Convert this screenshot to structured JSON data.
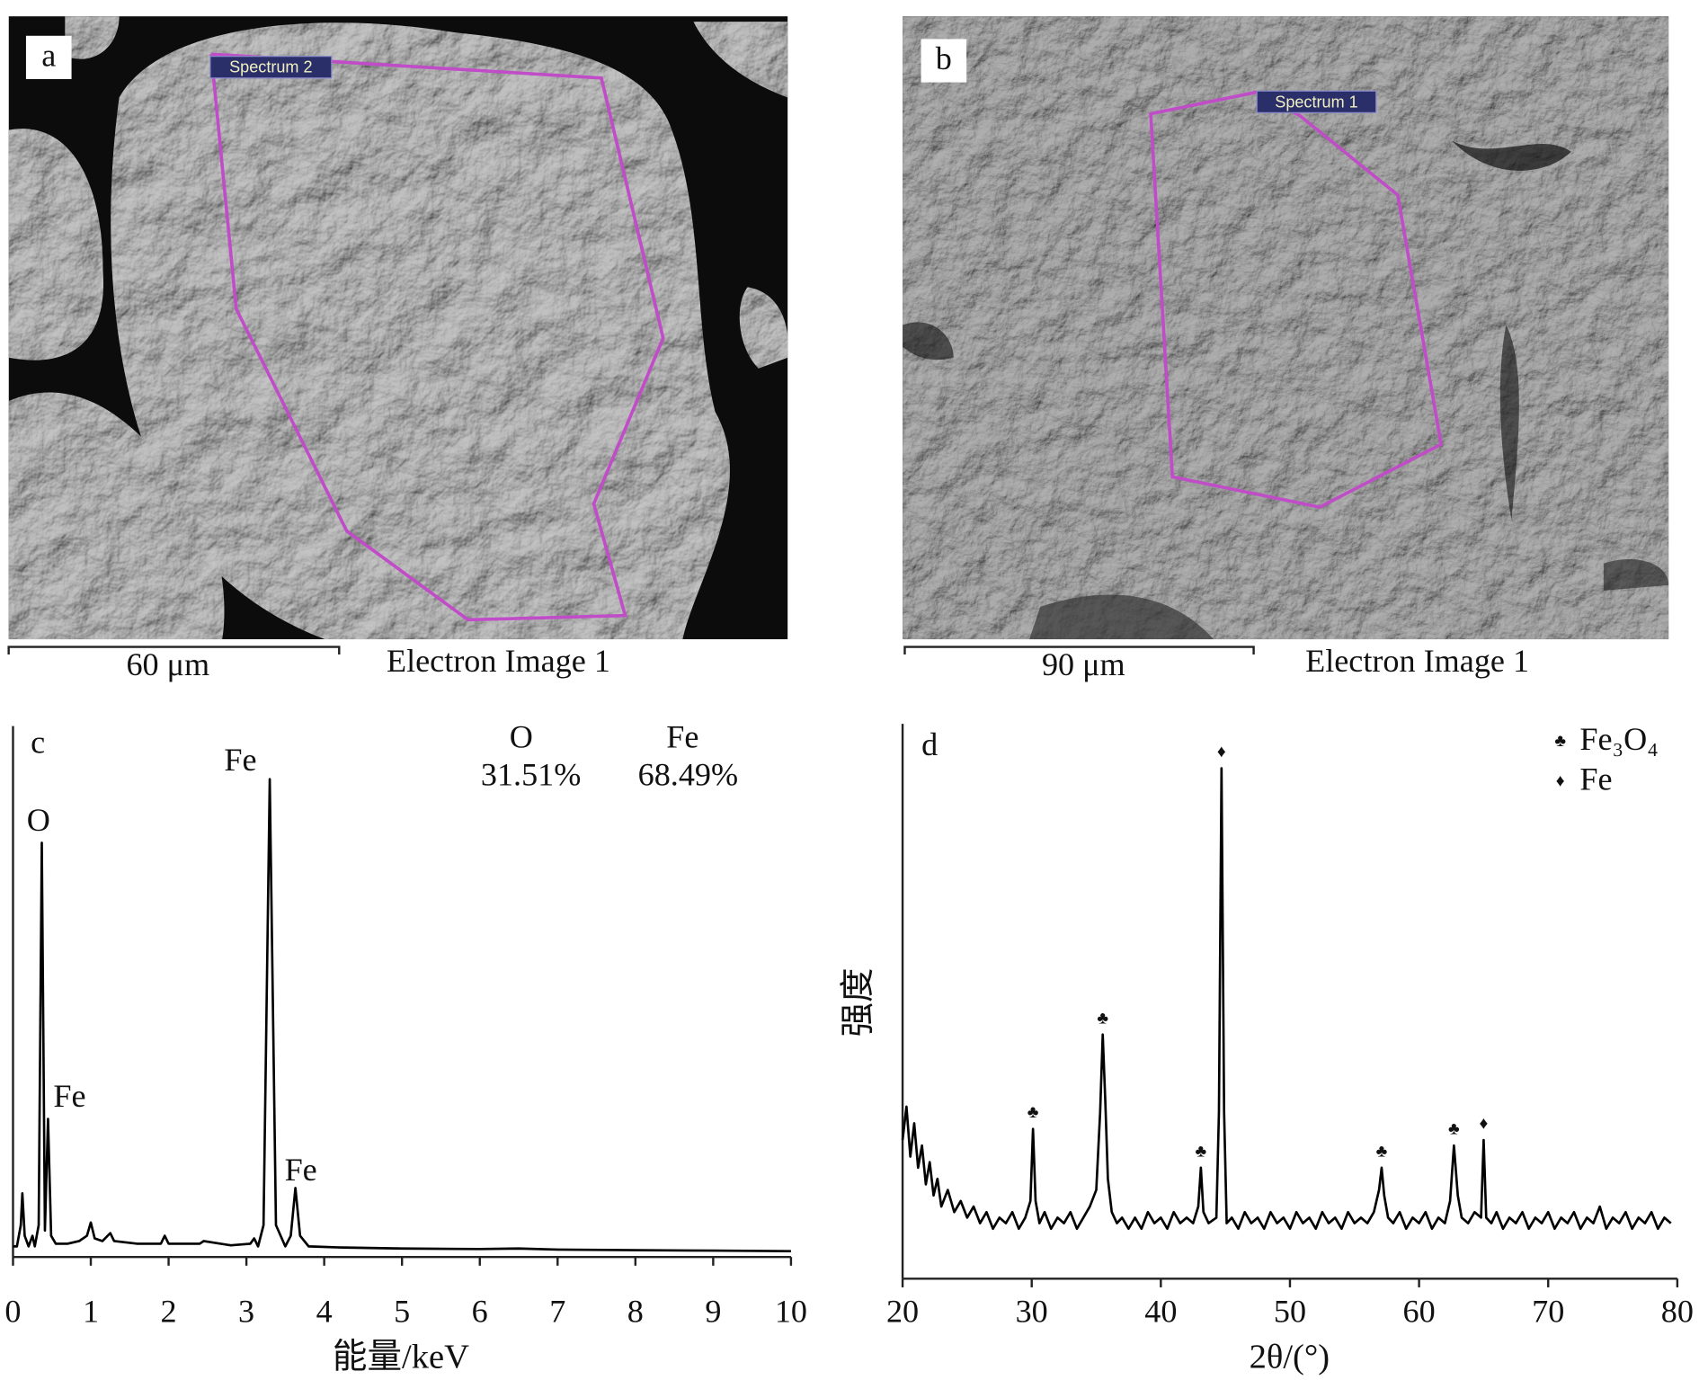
{
  "images": [
    {
      "letter": "a",
      "spectrum": "Spectrum 2",
      "scale_bar": "60 μm",
      "caption": "Electron Image 1"
    },
    {
      "letter": "b",
      "spectrum": "Spectrum 1",
      "scale_bar": "90 μm",
      "caption": "Electron Image 1"
    }
  ],
  "chart_data": [
    {
      "type": "line",
      "panel": "c",
      "x_label": "能量/keV",
      "x": [
        0,
        0.05,
        0.1,
        0.12,
        0.15,
        0.2,
        0.25,
        0.28,
        0.33,
        0.37,
        0.41,
        0.45,
        0.49,
        0.55,
        0.7,
        0.85,
        0.95,
        1,
        1.05,
        1.15,
        1.25,
        1.3,
        1.6,
        1.9,
        1.95,
        2,
        2.4,
        2.45,
        2.8,
        3.05,
        3.1,
        3.15,
        3.22,
        3.3,
        3.38,
        3.5,
        3.57,
        3.63,
        3.69,
        3.8,
        4.2,
        5,
        6,
        6.5,
        7,
        8,
        9,
        10
      ],
      "series": [
        {
          "color": "#000000",
          "values": [
            2,
            2,
            6,
            12,
            4,
            2,
            4,
            2,
            6,
            78,
            5,
            26,
            4,
            2.5,
            2.5,
            3,
            4,
            6.5,
            3.5,
            3,
            4.5,
            3,
            2.5,
            2.5,
            4,
            2.5,
            2.5,
            3,
            2.2,
            2.5,
            3.5,
            2,
            6,
            90,
            6,
            2,
            4,
            13,
            4,
            2,
            1.8,
            1.6,
            1.5,
            1.6,
            1.4,
            1.3,
            1.2,
            1.1
          ]
        }
      ],
      "xlim": [
        0,
        10
      ],
      "xticks": [
        0,
        1,
        2,
        3,
        4,
        5,
        6,
        7,
        8,
        9,
        10
      ],
      "ylim": [
        0,
        100
      ],
      "annotations": [
        {
          "text": "O",
          "x": 0.37
        },
        {
          "text": "Fe",
          "x": 3.3
        },
        {
          "text": "Fe",
          "x": 0.45
        },
        {
          "text": "Fe",
          "x": 3.63
        }
      ],
      "composition": [
        {
          "element": "O",
          "value": 31.51,
          "label": "31.51%"
        },
        {
          "element": "Fe",
          "value": 68.49,
          "label": "68.49%"
        }
      ]
    },
    {
      "type": "line",
      "panel": "d",
      "x_label": "2θ/(°)",
      "y_label": "强度",
      "x": [
        20,
        20.3,
        20.6,
        20.9,
        21.2,
        21.5,
        21.8,
        22.1,
        22.4,
        22.7,
        23,
        23.5,
        24,
        24.5,
        25,
        25.5,
        26,
        26.5,
        27,
        27.5,
        28,
        28.5,
        29,
        29.5,
        29.9,
        30.1,
        30.3,
        30.6,
        31,
        31.5,
        32,
        32.5,
        33,
        33.5,
        34,
        34.5,
        35,
        35.3,
        35.5,
        35.7,
        35.9,
        36.2,
        36.6,
        37,
        37.5,
        38,
        38.5,
        39,
        39.5,
        40,
        40.5,
        41,
        41.5,
        42,
        42.5,
        42.9,
        43.1,
        43.3,
        43.7,
        44.3,
        44.5,
        44.7,
        44.9,
        45.1,
        45.5,
        46,
        46.5,
        47,
        47.5,
        48,
        48.5,
        49,
        49.5,
        50,
        50.5,
        51,
        51.5,
        52,
        52.5,
        53,
        53.5,
        54,
        54.5,
        55,
        55.5,
        56,
        56.5,
        56.9,
        57.1,
        57.3,
        57.6,
        58,
        58.5,
        59,
        59.5,
        60,
        60.5,
        61,
        61.5,
        62,
        62.4,
        62.7,
        63,
        63.3,
        63.8,
        64.3,
        64.8,
        65,
        65.2,
        65.6,
        66,
        66.5,
        67,
        67.5,
        68,
        68.5,
        69,
        69.5,
        70,
        70.5,
        71,
        71.5,
        72,
        72.5,
        73,
        73.5,
        74,
        74.5,
        75,
        75.5,
        76,
        76.5,
        77,
        77.5,
        78,
        78.5,
        79,
        79.5
      ],
      "series": [
        {
          "color": "#000000",
          "values": [
            25,
            31,
            22,
            28,
            20,
            24,
            17,
            21,
            15,
            18,
            13,
            16,
            12,
            14,
            11,
            13,
            10,
            12,
            9,
            11,
            10,
            12,
            9,
            11,
            14,
            27,
            14,
            10,
            12,
            9,
            11,
            10,
            12,
            9,
            11,
            13,
            16,
            30,
            44,
            32,
            18,
            12,
            10,
            11,
            9,
            11,
            9,
            12,
            10,
            11,
            9,
            12,
            10,
            11,
            10,
            13,
            20,
            12,
            10,
            11,
            30,
            92,
            30,
            10,
            11,
            9,
            12,
            10,
            11,
            9,
            12,
            10,
            11,
            9,
            12,
            10,
            11,
            9,
            12,
            10,
            11,
            9,
            12,
            10,
            11,
            10,
            12,
            16,
            20,
            15,
            11,
            10,
            12,
            9,
            11,
            10,
            12,
            9,
            11,
            10,
            14,
            24,
            15,
            11,
            10,
            12,
            11,
            25,
            11,
            10,
            12,
            9,
            11,
            10,
            12,
            9,
            11,
            10,
            12,
            9,
            11,
            10,
            12,
            9,
            11,
            10,
            13,
            9,
            11,
            10,
            12,
            9,
            11,
            10,
            12,
            9,
            11,
            10
          ]
        }
      ],
      "xlim": [
        20,
        80
      ],
      "xticks": [
        20,
        30,
        40,
        50,
        60,
        70,
        80
      ],
      "ylim": [
        0,
        100
      ],
      "markers": [
        {
          "text": "♣",
          "x": 30.1
        },
        {
          "text": "♣",
          "x": 35.5
        },
        {
          "text": "♣",
          "x": 43.1
        },
        {
          "text": "♦",
          "x": 44.7
        },
        {
          "text": "♣",
          "x": 57.1
        },
        {
          "text": "♣",
          "x": 62.7
        },
        {
          "text": "♦",
          "x": 65
        }
      ],
      "legend": [
        {
          "symbol": "♣",
          "label": "Fe₃O₄"
        },
        {
          "symbol": "♦",
          "label": "Fe"
        }
      ]
    }
  ]
}
